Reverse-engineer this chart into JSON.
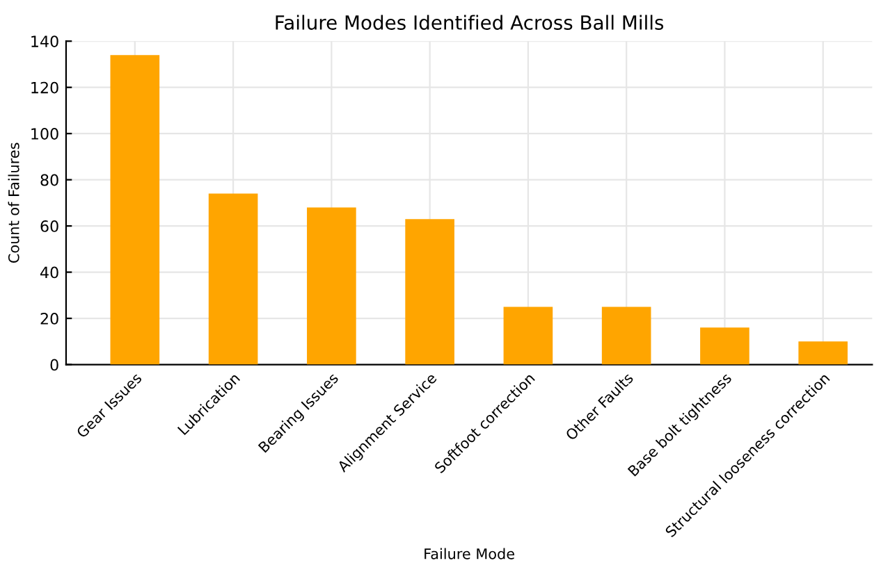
{
  "chart_data": {
    "type": "bar",
    "title": "Failure Modes Identified Across Ball Mills",
    "xlabel": "Failure Mode",
    "ylabel": "Count of Failures",
    "categories": [
      "Gear Issues",
      "Lubrication",
      "Bearing Issues",
      "Alignment Service",
      "Softfoot correction",
      "Other Faults",
      "Base bolt tightness",
      "Structural looseness correction"
    ],
    "values": [
      134,
      74,
      68,
      63,
      25,
      25,
      16,
      10
    ],
    "color": "#ffa500",
    "ylim": [
      0,
      140
    ],
    "yticks": [
      0,
      20,
      40,
      60,
      80,
      100,
      120,
      140
    ],
    "grid": true
  }
}
